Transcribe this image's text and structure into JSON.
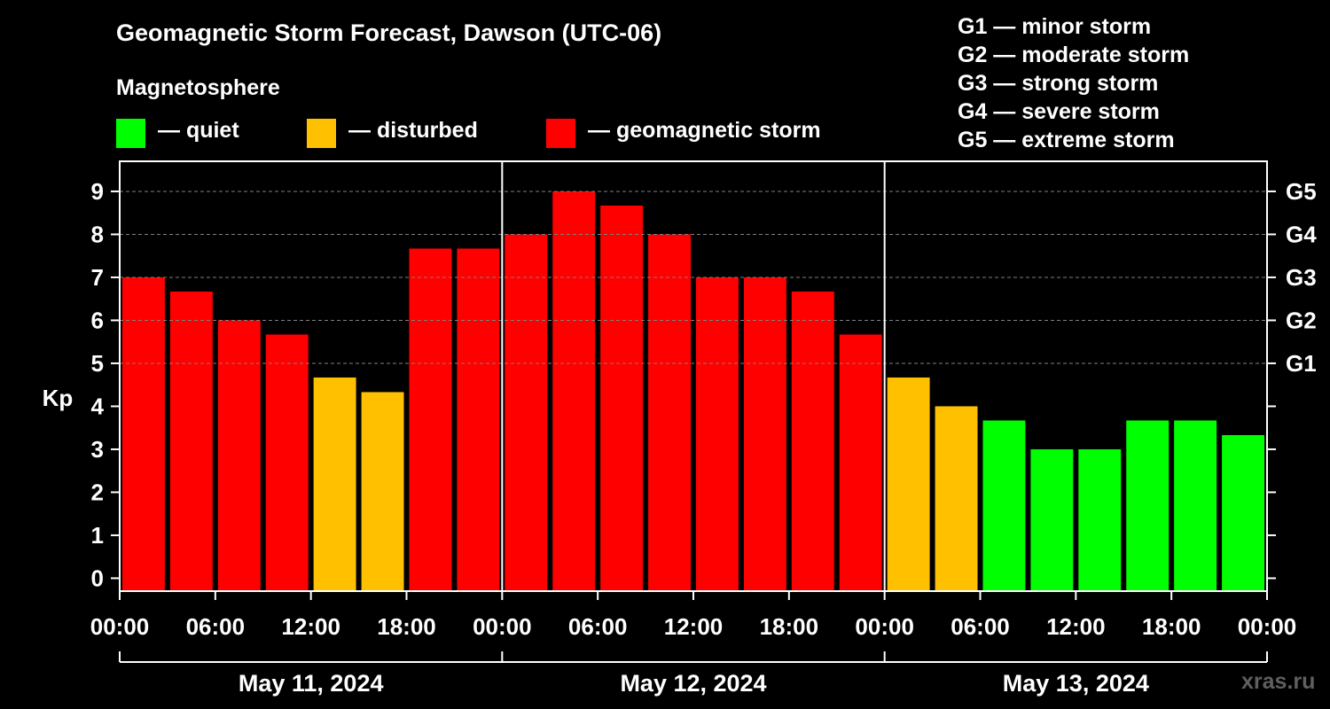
{
  "title": "Geomagnetic Storm Forecast, Dawson (UTC-06)",
  "subtitle": "Magnetosphere",
  "legend": [
    {
      "label": "— quiet",
      "color": "#00ff00"
    },
    {
      "label": "— disturbed",
      "color": "#ffc000"
    },
    {
      "label": "— geomagnetic storm",
      "color": "#ff0000"
    }
  ],
  "storm_scale": [
    "G1 — minor storm",
    "G2 — moderate storm",
    "G3 — strong storm",
    "G4 — severe storm",
    "G5 — extreme storm"
  ],
  "watermark": "xras.ru",
  "colors": {
    "quiet": "#00ff00",
    "disturbed": "#ffc000",
    "storm": "#ff0000",
    "grid": "#808080",
    "axis": "#ffffff"
  },
  "chart_data": {
    "type": "bar",
    "ylabel": "Kp",
    "ylim": [
      -0.3,
      9.7
    ],
    "yticks": [
      0,
      1,
      2,
      3,
      4,
      5,
      6,
      7,
      8,
      9
    ],
    "right_ticks": [
      {
        "value": 5,
        "label": "G1"
      },
      {
        "value": 6,
        "label": "G2"
      },
      {
        "value": 7,
        "label": "G3"
      },
      {
        "value": 8,
        "label": "G4"
      },
      {
        "value": 9,
        "label": "G5"
      }
    ],
    "xlim_hours": [
      0,
      72
    ],
    "xtick_labels": [
      "00:00",
      "06:00",
      "12:00",
      "18:00",
      "00:00",
      "06:00",
      "12:00",
      "18:00",
      "00:00",
      "06:00",
      "12:00",
      "18:00",
      "00:00"
    ],
    "day_labels": [
      "May 11, 2024",
      "May 12, 2024",
      "May 13, 2024"
    ],
    "bar_hours": 3,
    "values": [
      7.0,
      6.67,
      6.0,
      5.67,
      4.67,
      4.33,
      7.67,
      7.67,
      8.0,
      9.0,
      8.67,
      8.0,
      7.0,
      7.0,
      6.67,
      5.67,
      4.67,
      4.0,
      3.67,
      3.0,
      3.0,
      3.67,
      3.67,
      3.33
    ],
    "levels": [
      "storm",
      "storm",
      "storm",
      "storm",
      "disturbed",
      "disturbed",
      "storm",
      "storm",
      "storm",
      "storm",
      "storm",
      "storm",
      "storm",
      "storm",
      "storm",
      "storm",
      "disturbed",
      "disturbed",
      "quiet",
      "quiet",
      "quiet",
      "quiet",
      "quiet",
      "quiet"
    ]
  }
}
